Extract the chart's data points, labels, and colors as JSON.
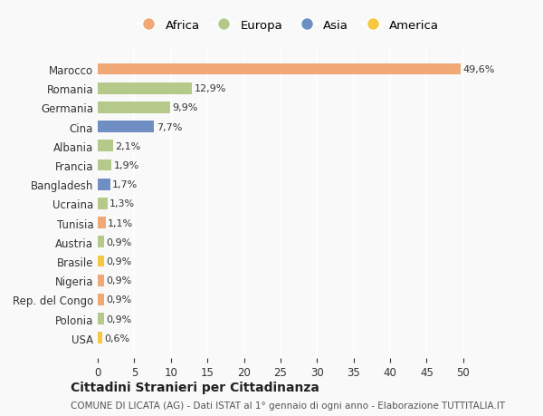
{
  "categories": [
    "Marocco",
    "Romania",
    "Germania",
    "Cina",
    "Albania",
    "Francia",
    "Bangladesh",
    "Ucraina",
    "Tunisia",
    "Austria",
    "Brasile",
    "Nigeria",
    "Rep. del Congo",
    "Polonia",
    "USA"
  ],
  "values": [
    49.6,
    12.9,
    9.9,
    7.7,
    2.1,
    1.9,
    1.7,
    1.3,
    1.1,
    0.9,
    0.9,
    0.9,
    0.9,
    0.9,
    0.6
  ],
  "labels": [
    "49,6%",
    "12,9%",
    "9,9%",
    "7,7%",
    "2,1%",
    "1,9%",
    "1,7%",
    "1,3%",
    "1,1%",
    "0,9%",
    "0,9%",
    "0,9%",
    "0,9%",
    "0,9%",
    "0,6%"
  ],
  "colors": [
    "#f0a875",
    "#b5c98a",
    "#b5c98a",
    "#6e8ec4",
    "#b5c98a",
    "#b5c98a",
    "#6e8ec4",
    "#b5c98a",
    "#f0a875",
    "#b5c98a",
    "#f5c842",
    "#f0a875",
    "#f0a875",
    "#b5c98a",
    "#f5c842"
  ],
  "continent_colors": {
    "Africa": "#f0a875",
    "Europa": "#b5c98a",
    "Asia": "#6e8ec4",
    "America": "#f5c842"
  },
  "legend_labels": [
    "Africa",
    "Europa",
    "Asia",
    "America"
  ],
  "xlim": [
    0,
    52
  ],
  "xticks": [
    0,
    5,
    10,
    15,
    20,
    25,
    30,
    35,
    40,
    45,
    50
  ],
  "title": "Cittadini Stranieri per Cittadinanza",
  "subtitle": "COMUNE DI LICATA (AG) - Dati ISTAT al 1° gennaio di ogni anno - Elaborazione TUTTITALIA.IT",
  "bg_color": "#f9f9f9",
  "grid_color": "#ffffff",
  "bar_height": 0.6
}
